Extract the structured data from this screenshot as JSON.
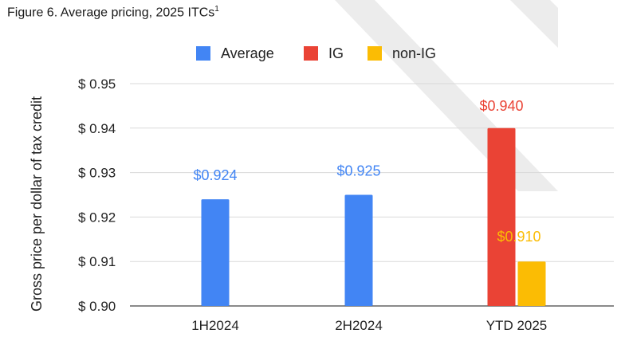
{
  "figure": {
    "title": "Figure 6. Average pricing, 2025 ITCs",
    "title_superscript": "1"
  },
  "chart_data": {
    "type": "bar",
    "title": "Figure 6. Average pricing, 2025 ITCs",
    "xlabel": "",
    "ylabel": "Gross price per dollar of tax credit",
    "categories": [
      "1H2024",
      "2H2024",
      "YTD 2025"
    ],
    "ylim": [
      0.9,
      0.95
    ],
    "yticks": [
      0.9,
      0.91,
      0.92,
      0.93,
      0.94,
      0.95
    ],
    "ytick_labels": [
      "$ 0.90",
      "$ 0.91",
      "$ 0.92",
      "$ 0.93",
      "$ 0.94",
      "$ 0.95"
    ],
    "grid": true,
    "legend_position": "top-center",
    "series": [
      {
        "name": "Average",
        "color": "#4285f4",
        "values": [
          0.924,
          0.925,
          null
        ],
        "labels": [
          "$0.924",
          "$0.925",
          ""
        ]
      },
      {
        "name": "IG",
        "color": "#ea4335",
        "values": [
          null,
          null,
          0.94
        ],
        "labels": [
          "",
          "",
          "$0.940"
        ]
      },
      {
        "name": "non-IG",
        "color": "#fbbc04",
        "values": [
          null,
          null,
          0.91
        ],
        "labels": [
          "",
          "",
          "$0.910"
        ]
      }
    ]
  }
}
